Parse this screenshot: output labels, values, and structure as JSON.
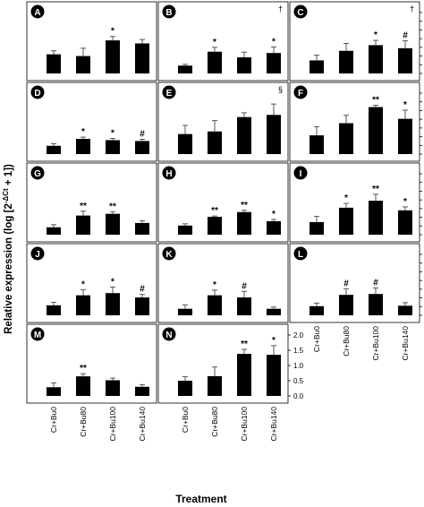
{
  "figure": {
    "ylabel": "Relative expression (log [2^-ΔCt + 1])",
    "ylabel_main": "Relative expression (log [2",
    "ylabel_sup": "-ΔCt",
    "ylabel_tail": " + 1])",
    "xlabel": "Treatment",
    "bar_color": "#000000",
    "grid": false
  },
  "chart_data": [
    {
      "type": "bar",
      "title": "A",
      "categories": [
        "Cr+Bu0",
        "Cr+Bu80",
        "Cr+Bu100",
        "Cr+Bu140"
      ],
      "values": [
        0.44,
        0.4,
        0.76,
        0.69
      ],
      "errors": [
        0.08,
        0.18,
        0.09,
        0.09
      ],
      "marks": [
        "",
        "",
        "*",
        ""
      ],
      "corner_mark": "",
      "ylim": [
        0,
        1.4
      ],
      "yticks": [
        "0.0",
        "0.2",
        "0.4",
        "0.6",
        "0.8",
        "1.0",
        "1.2",
        "1.4"
      ]
    },
    {
      "type": "bar",
      "title": "B",
      "categories": [
        "Cr+Bu0",
        "Cr+Bu80",
        "Cr+Bu100",
        "Cr+Bu140"
      ],
      "values": [
        0.18,
        0.5,
        0.37,
        0.47
      ],
      "errors": [
        0.03,
        0.1,
        0.12,
        0.14
      ],
      "marks": [
        "",
        "*",
        "",
        "*"
      ],
      "corner_mark": "†",
      "ylim": [
        0,
        1.4
      ],
      "yticks": [
        "0.0",
        "0.2",
        "0.4",
        "0.6",
        "0.8",
        "1.0",
        "1.2",
        "1.4"
      ]
    },
    {
      "type": "bar",
      "title": "C",
      "categories": [
        "Cr+Bu0",
        "Cr+Bu80",
        "Cr+Bu100",
        "Cr+Bu140"
      ],
      "values": [
        0.3,
        0.52,
        0.65,
        0.58
      ],
      "errors": [
        0.12,
        0.17,
        0.11,
        0.17
      ],
      "marks": [
        "",
        "",
        "*",
        "#"
      ],
      "corner_mark": "†",
      "ylim": [
        0,
        1.4
      ],
      "yticks": [
        "0.0",
        "0.2",
        "0.4",
        "0.6",
        "0.8",
        "1.0",
        "1.2",
        "1.4"
      ]
    },
    {
      "type": "bar",
      "title": "D",
      "categories": [
        "Cr+Bu0",
        "Cr+Bu80",
        "Cr+Bu100",
        "Cr+Bu140"
      ],
      "values": [
        0.19,
        0.35,
        0.32,
        0.3
      ],
      "errors": [
        0.05,
        0.04,
        0.04,
        0.04
      ],
      "marks": [
        "",
        "*",
        "*",
        "#"
      ],
      "corner_mark": "",
      "ylim": [
        0,
        1.4
      ],
      "yticks": [
        "0.0",
        "0.2",
        "0.4",
        "0.6",
        "0.8",
        "1.0",
        "1.2",
        "1.4"
      ]
    },
    {
      "type": "bar",
      "title": "E",
      "categories": [
        "Cr+Bu0",
        "Cr+Bu80",
        "Cr+Bu100",
        "Cr+Bu140"
      ],
      "values": [
        0.46,
        0.52,
        0.85,
        0.9
      ],
      "errors": [
        0.2,
        0.25,
        0.1,
        0.25
      ],
      "marks": [
        "",
        "",
        "",
        ""
      ],
      "corner_mark": "§",
      "ylim": [
        0,
        1.4
      ],
      "yticks": [
        "0.0",
        "0.2",
        "0.4",
        "0.6",
        "0.8",
        "1.0",
        "1.2",
        "1.4"
      ]
    },
    {
      "type": "bar",
      "title": "F",
      "categories": [
        "Cr+Bu0",
        "Cr+Bu80",
        "Cr+Bu100",
        "Cr+Bu140"
      ],
      "values": [
        0.43,
        0.71,
        1.08,
        0.81
      ],
      "errors": [
        0.2,
        0.18,
        0.04,
        0.2
      ],
      "marks": [
        "",
        "",
        "**",
        "*"
      ],
      "corner_mark": "",
      "ylim": [
        0,
        1.4
      ],
      "yticks": [
        "0.0",
        "0.2",
        "0.4",
        "0.6",
        "0.8",
        "1.0",
        "1.2",
        "1.4"
      ]
    },
    {
      "type": "bar",
      "title": "G",
      "categories": [
        "Cr+Bu0",
        "Cr+Bu80",
        "Cr+Bu100",
        "Cr+Bu140"
      ],
      "values": [
        0.17,
        0.44,
        0.48,
        0.27
      ],
      "errors": [
        0.06,
        0.1,
        0.05,
        0.05
      ],
      "marks": [
        "",
        "**",
        "**",
        ""
      ],
      "corner_mark": "",
      "ylim": [
        0,
        1.4
      ],
      "yticks": [
        "0.0",
        "0.2",
        "0.4",
        "0.6",
        "0.8",
        "1.0",
        "1.2",
        "1.4"
      ]
    },
    {
      "type": "bar",
      "title": "H",
      "categories": [
        "Cr+Bu0",
        "Cr+Bu80",
        "Cr+Bu100",
        "Cr+Bu140"
      ],
      "values": [
        0.21,
        0.41,
        0.52,
        0.31
      ],
      "errors": [
        0.04,
        0.02,
        0.04,
        0.04
      ],
      "marks": [
        "",
        "**",
        "**",
        "*"
      ],
      "corner_mark": "",
      "ylim": [
        0,
        1.4
      ],
      "yticks": [
        "0.0",
        "0.2",
        "0.4",
        "0.6",
        "0.8",
        "1.0",
        "1.2",
        "1.4"
      ]
    },
    {
      "type": "bar",
      "title": "I",
      "categories": [
        "Cr+Bu0",
        "Cr+Bu80",
        "Cr+Bu100",
        "Cr+Bu140"
      ],
      "values": [
        0.29,
        0.62,
        0.78,
        0.56
      ],
      "errors": [
        0.13,
        0.1,
        0.15,
        0.08
      ],
      "marks": [
        "",
        "*",
        "**",
        "*"
      ],
      "corner_mark": "",
      "ylim": [
        0,
        1.4
      ],
      "yticks": [
        "0.0",
        "0.2",
        "0.4",
        "0.6",
        "0.8",
        "1.0",
        "1.2",
        "1.4"
      ]
    },
    {
      "type": "bar",
      "title": "J",
      "categories": [
        "Cr+Bu0",
        "Cr+Bu80",
        "Cr+Bu100",
        "Cr+Bu140"
      ],
      "values": [
        0.23,
        0.46,
        0.51,
        0.41
      ],
      "errors": [
        0.07,
        0.13,
        0.14,
        0.07
      ],
      "marks": [
        "",
        "*",
        "*",
        "#"
      ],
      "corner_mark": "",
      "ylim": [
        0,
        1.4
      ],
      "yticks": [
        "0.0",
        "0.2",
        "0.4",
        "0.6",
        "0.8",
        "1.0",
        "1.2",
        "1.4"
      ]
    },
    {
      "type": "bar",
      "title": "K",
      "categories": [
        "Cr+Bu0",
        "Cr+Bu80",
        "Cr+Bu100",
        "Cr+Bu140"
      ],
      "values": [
        0.15,
        0.46,
        0.41,
        0.15
      ],
      "errors": [
        0.09,
        0.12,
        0.14,
        0.04
      ],
      "marks": [
        "",
        "*",
        "#",
        ""
      ],
      "corner_mark": "",
      "ylim": [
        0,
        1.4
      ],
      "yticks": [
        "0.0",
        "0.2",
        "0.4",
        "0.6",
        "0.8",
        "1.0",
        "1.2",
        "1.4"
      ]
    },
    {
      "type": "bar",
      "title": "L",
      "categories": [
        "Cr+Bu0",
        "Cr+Bu80",
        "Cr+Bu100",
        "Cr+Bu140"
      ],
      "values": [
        0.21,
        0.47,
        0.49,
        0.22
      ],
      "errors": [
        0.07,
        0.14,
        0.14,
        0.07
      ],
      "marks": [
        "",
        "#",
        "#",
        ""
      ],
      "corner_mark": "",
      "ylim": [
        0,
        1.4
      ],
      "yticks": [
        "0.0",
        "0.2",
        "0.4",
        "0.6",
        "0.8",
        "1.0",
        "1.2",
        "1.4"
      ]
    },
    {
      "type": "bar",
      "title": "M",
      "categories": [
        "Cr+Bu0",
        "Cr+Bu80",
        "Cr+Bu100",
        "Cr+Bu140"
      ],
      "values": [
        0.2,
        0.45,
        0.36,
        0.21
      ],
      "errors": [
        0.1,
        0.06,
        0.05,
        0.05
      ],
      "marks": [
        "",
        "**",
        "",
        ""
      ],
      "corner_mark": "",
      "ylim": [
        0,
        1.4
      ],
      "yticks": [
        "0.0",
        "0.2",
        "0.4",
        "0.6",
        "0.8",
        "1.0",
        "1.2",
        "1.4"
      ]
    },
    {
      "type": "bar",
      "title": "N",
      "categories": [
        "Cr+Bu0",
        "Cr+Bu80",
        "Cr+Bu100",
        "Cr+Bu140"
      ],
      "values": [
        0.5,
        0.65,
        1.38,
        1.35
      ],
      "errors": [
        0.13,
        0.3,
        0.15,
        0.3
      ],
      "marks": [
        "",
        "",
        "**",
        "*"
      ],
      "corner_mark": "",
      "ylim": [
        0,
        2.0
      ],
      "yticks": [
        "0.0",
        "0.5",
        "1.0",
        "1.5",
        "2.0"
      ]
    }
  ]
}
